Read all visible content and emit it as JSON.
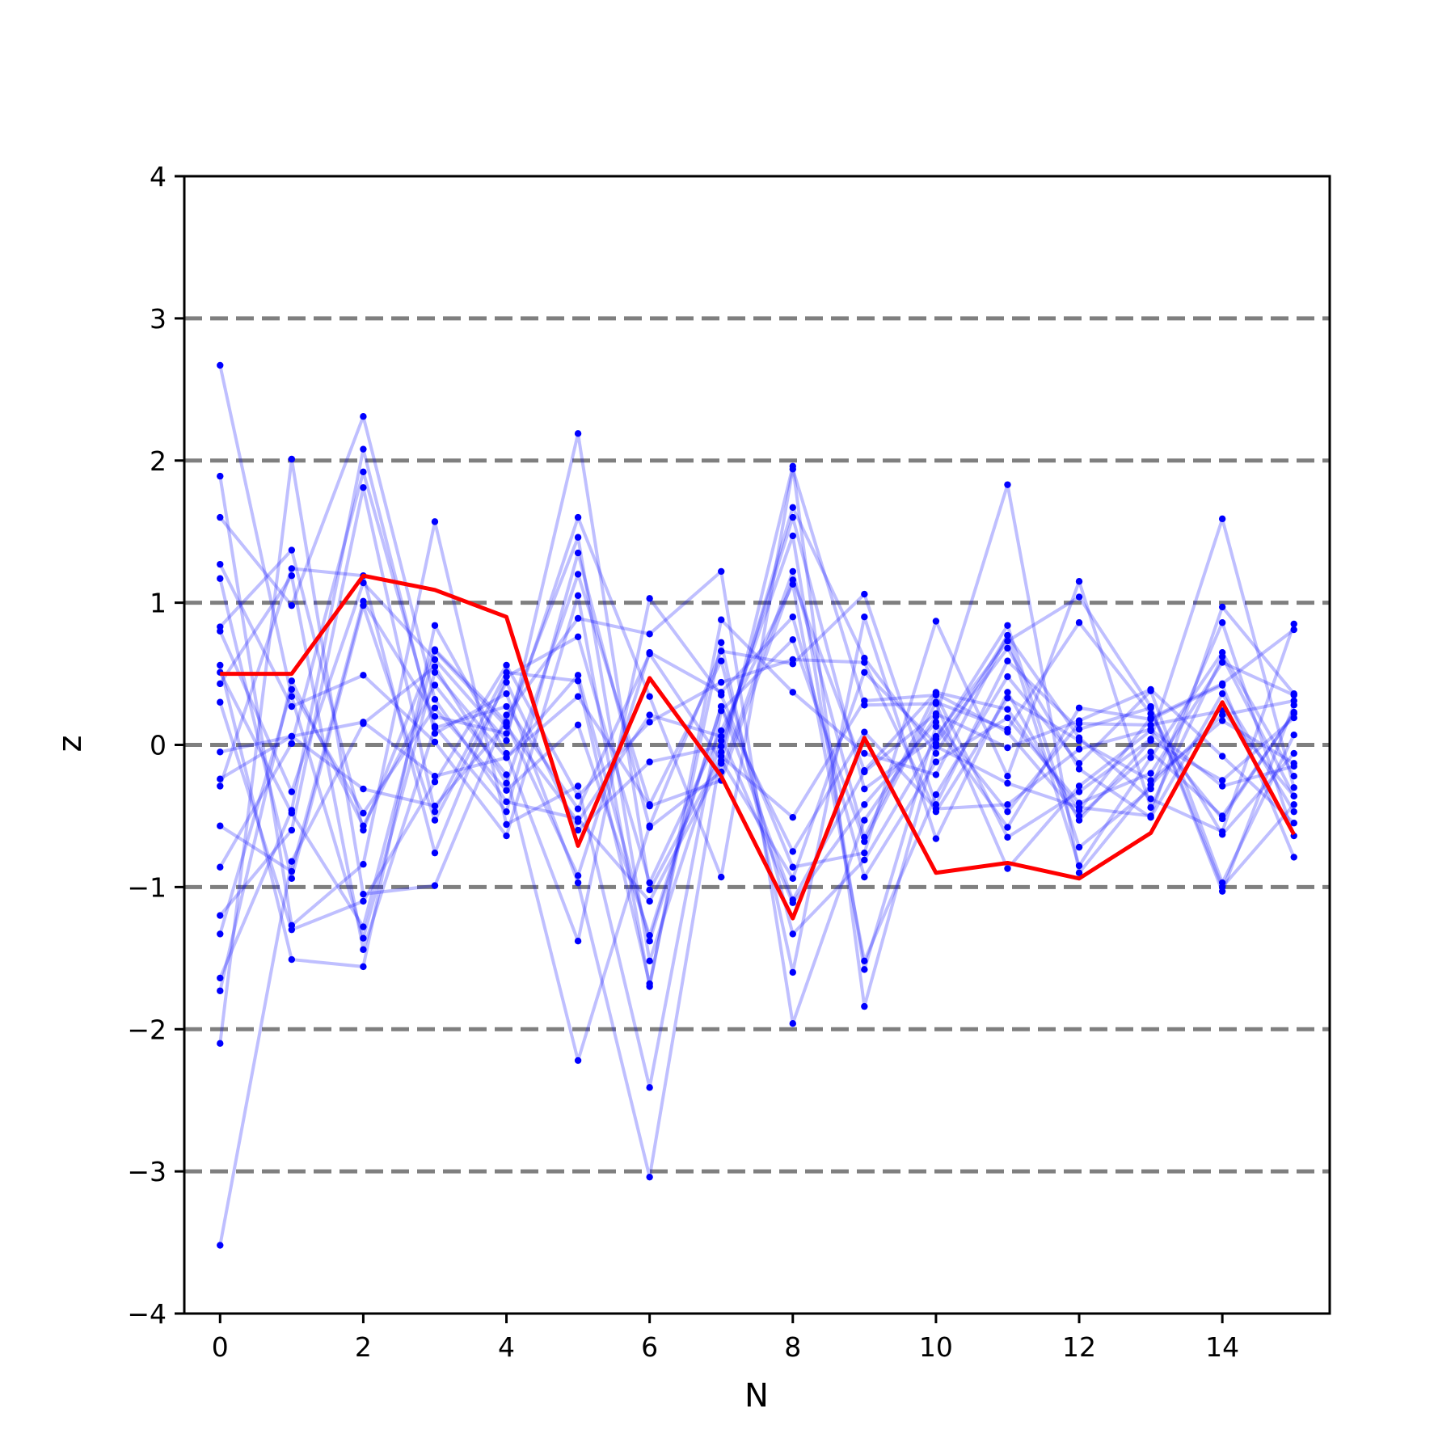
{
  "chart_data": {
    "type": "line",
    "title": "",
    "xlabel": "N",
    "ylabel": "z",
    "xlim": [
      -0.5,
      15.5
    ],
    "ylim": [
      -4,
      4
    ],
    "x": [
      0,
      1,
      2,
      3,
      4,
      5,
      6,
      7,
      8,
      9,
      10,
      11,
      12,
      13,
      14,
      15
    ],
    "xticks": [
      0,
      2,
      4,
      6,
      8,
      10,
      12,
      14
    ],
    "yticks": [
      -4,
      -3,
      -2,
      -1,
      0,
      1,
      2,
      3,
      4
    ],
    "ytick_labels": [
      "−4",
      "−3",
      "−2",
      "−1",
      "0",
      "1",
      "2",
      "3",
      "4"
    ],
    "reference_lines": [
      -3,
      -2,
      -1,
      0,
      1,
      2,
      3
    ],
    "grid": false,
    "legend": "none",
    "colors": {
      "sample_lines": "#0000ff",
      "sample_points": "#0000ff",
      "highlight": "#ff0000",
      "reference": "#7f7f7f"
    },
    "highlight_series": {
      "values": [
        0.5,
        0.5,
        1.19,
        1.09,
        0.9,
        -0.71,
        0.47,
        -0.22,
        -1.22,
        0.05,
        -0.9,
        -0.83,
        -0.94,
        -0.62,
        0.3,
        -0.63
      ]
    },
    "sample_series": [
      [
        2.67,
        0.34,
        -1.36,
        0.51,
        -0.09,
        0.49,
        -1.38,
        0.27,
        -0.75,
        0.09,
        -0.45,
        -0.42,
        -0.03,
        0.11,
        -0.29,
        -0.15
      ],
      [
        -3.52,
        -0.82,
        0.15,
        0.55,
        -0.27,
        1.2,
        -0.42,
        0.59,
        -1.33,
        -0.81,
        0.04,
        0.84,
        -0.72,
        -0.31,
        0.86,
        -0.64
      ],
      [
        1.89,
        -1.27,
        -0.84,
        1.57,
        -0.56,
        -0.29,
        -2.41,
        0.24,
        0.74,
        -0.68,
        0.3,
        0.11,
        0.86,
        0.22,
        -0.63,
        -0.06
      ],
      [
        -2.1,
        2.01,
        -1.05,
        -0.99,
        0.21,
        0.89,
        0.78,
        1.22,
        -1.96,
        -0.53,
        0.2,
        1.83,
        -0.9,
        -0.28,
        0.21,
        0.31
      ],
      [
        1.6,
        0.98,
        2.31,
        0.32,
        -0.4,
        -0.52,
        -1.1,
        -0.13,
        1.96,
        -1.84,
        -0.01,
        -0.27,
        -0.44,
        -0.5,
        0.97,
        0.36
      ],
      [
        -1.64,
        -0.46,
        2.08,
        0.08,
        0.36,
        -0.97,
        -3.04,
        -0.05,
        1.67,
        0.61,
        -0.06,
        0.77,
        0.05,
        -0.38,
        -0.61,
        0.85
      ],
      [
        0.83,
        1.37,
        -0.6,
        0.67,
        0.16,
        1.46,
        -1.52,
        0.03,
        1.47,
        -1.58,
        0.13,
        -0.58,
        0.26,
        0.18,
        0.42,
        -0.79
      ],
      [
        -1.2,
        -0.6,
        1.81,
        -0.47,
        0.51,
        0.45,
        -1.68,
        0.72,
        -1.6,
        0.9,
        -0.66,
        0.37,
        -0.53,
        0.03,
        -0.25,
        0.19
      ],
      [
        0.56,
        -1.51,
        -1.56,
        0.84,
        -0.06,
        -1.38,
        1.03,
        0.35,
        -0.86,
        -0.76,
        0.87,
        -0.22,
        1.15,
        -0.44,
        0.62,
        -0.36
      ],
      [
        -0.29,
        1.24,
        1.19,
        -0.76,
        0.48,
        0.76,
        -0.97,
        0.1,
        1.13,
        -1.52,
        -0.35,
        0.48,
        -0.13,
        0.38,
        -0.97,
        0.07
      ],
      [
        1.27,
        0.27,
        0.49,
        0.02,
        -0.64,
        1.05,
        -1.7,
        0.88,
        0.37,
        -0.06,
        -0.21,
        0.77,
        -0.85,
        -0.09,
        0.65,
        -0.22
      ],
      [
        -0.57,
        -0.89,
        1.01,
        0.2,
        0.08,
        1.6,
        0.34,
        -0.93,
        1.94,
        0.28,
        0.29,
        -0.87,
        -0.29,
        0.1,
        -0.52,
        0.23
      ],
      [
        0.43,
        1.19,
        -1.44,
        0.12,
        0.27,
        -0.45,
        0.64,
        -0.11,
        -0.94,
        0.51,
        0.01,
        0.68,
        -0.17,
        -0.51,
        0.36,
        -0.47
      ],
      [
        -1.73,
        0.45,
        -0.57,
        0.42,
        -0.21,
        -2.22,
        -0.57,
        0.66,
        0.57,
        1.06,
        -0.42,
        0.59,
        0.11,
        0.26,
        -1.03,
        0.28
      ],
      [
        0.8,
        -0.33,
        1.14,
        0.6,
        0.03,
        2.19,
        -1.02,
        -0.08,
        -0.51,
        0.31,
        0.35,
        -0.65,
        -0.33,
        0.04,
        1.59,
        -0.3
      ],
      [
        -0.05,
        0.06,
        -0.31,
        -0.43,
        0.15,
        -0.92,
        0.65,
        0.37,
        0.9,
        -0.93,
        -0.12,
        0.19,
        -0.41,
        -0.2,
        0.58,
        0.35
      ],
      [
        1.17,
        -0.94,
        0.98,
        -0.53,
        0.44,
        -0.6,
        -0.12,
        -0.01,
        1.6,
        -0.31,
        0.06,
        0.73,
        1.04,
        0.27,
        -1.0,
        -0.42
      ],
      [
        -1.33,
        0.39,
        -0.48,
        0.26,
        -0.32,
        0.14,
        -1.34,
        0.27,
        -1.09,
        -0.19,
        0.22,
        -0.02,
        0.17,
        0.39,
        -0.08,
        -0.55
      ],
      [
        0.3,
        -1.3,
        -1.1,
        -0.26,
        0.56,
        -0.36,
        0.16,
        0.44,
        0.6,
        0.58,
        -0.47,
        0.33,
        0.03,
        -0.25,
        0.17,
        -0.13
      ],
      [
        -0.86,
        0.01,
        1.92,
        0.13,
        -0.47,
        1.35,
        -0.58,
        -0.19,
        1.22,
        -0.65,
        0.36,
        0.09,
        -0.5,
        -0.05,
        -0.5,
        0.22
      ],
      [
        0.51,
        -0.48,
        -1.28,
        0.66,
        0.13,
        -0.54,
        0.21,
        0.06,
        -1.11,
        -0.42,
        0.16,
        -0.47,
        0.15,
        0.14,
        0.24,
        -0.36
      ],
      [
        -0.24,
        0.06,
        0.16,
        -0.22,
        -0.09,
        0.34,
        -0.43,
        -0.25,
        1.16,
        -0.18,
        0.37,
        0.25,
        -0.46,
        0.19,
        0.43,
        0.81
      ]
    ]
  }
}
